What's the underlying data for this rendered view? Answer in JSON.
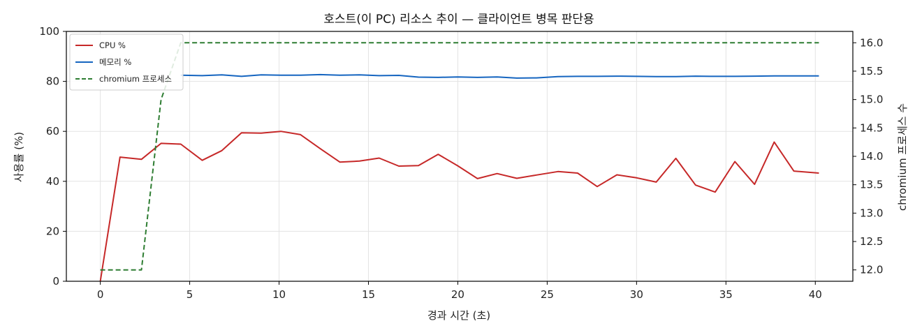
{
  "chart_data": {
    "type": "line",
    "title": "호스트(이 PC) 리소스 추이 — 클라이언트 병목 판단용",
    "xlabel": "경과 시간 (초)",
    "ylabel": "사용률 (%)",
    "y2label": "chromium 프로세스 수",
    "xlim": [
      -1.9,
      42.1
    ],
    "ylim": [
      0,
      100
    ],
    "y2lim": [
      11.8,
      16.2
    ],
    "xticks": [
      0,
      5,
      10,
      15,
      20,
      25,
      30,
      35,
      40
    ],
    "yticks": [
      0,
      20,
      40,
      60,
      80,
      100
    ],
    "y2ticks": [
      "12.0",
      "12.5",
      "13.0",
      "13.5",
      "14.0",
      "14.5",
      "15.0",
      "15.5",
      "16.0"
    ],
    "grid": true,
    "legend_position": "top-left",
    "series": [
      {
        "name": "CPU %",
        "color": "#c62828",
        "style": "solid",
        "axis": "left",
        "x": [
          0,
          1.1,
          2.3,
          3.4,
          4.5,
          5.7,
          6.8,
          7.9,
          9.0,
          10.1,
          11.2,
          12.3,
          13.4,
          14.5,
          15.6,
          16.7,
          17.8,
          18.9,
          20.0,
          21.1,
          22.2,
          23.3,
          24.4,
          25.6,
          26.7,
          27.8,
          28.9,
          30.0,
          31.1,
          32.2,
          33.3,
          34.4,
          35.5,
          36.6,
          37.7,
          38.8,
          40.2
        ],
        "values": [
          0,
          49.7,
          48.8,
          55.2,
          54.9,
          48.4,
          52.3,
          59.4,
          59.3,
          60.0,
          58.7,
          53.1,
          47.7,
          48.1,
          49.3,
          46.1,
          46.3,
          50.8,
          46.2,
          41.1,
          43.1,
          41.2,
          42.5,
          43.9,
          43.3,
          37.9,
          42.6,
          41.4,
          39.7,
          49.2,
          38.5,
          35.7,
          47.9,
          38.8,
          55.7,
          44.1,
          43.3
        ]
      },
      {
        "name": "메모리 %",
        "color": "#1565c0",
        "style": "solid",
        "axis": "left",
        "x": [
          4.5,
          5.7,
          6.8,
          7.9,
          9.0,
          10.1,
          11.2,
          12.3,
          13.4,
          14.5,
          15.6,
          16.7,
          17.8,
          18.9,
          20.0,
          21.1,
          22.2,
          23.3,
          24.4,
          25.6,
          26.7,
          27.8,
          28.9,
          30.0,
          31.1,
          32.2,
          33.3,
          34.4,
          35.5,
          36.6,
          37.7,
          38.8,
          40.2
        ],
        "values": [
          82.5,
          82.3,
          82.6,
          82.0,
          82.6,
          82.5,
          82.5,
          82.7,
          82.5,
          82.6,
          82.3,
          82.4,
          81.7,
          81.6,
          81.8,
          81.6,
          81.8,
          81.3,
          81.4,
          81.9,
          82.0,
          82.0,
          82.1,
          82.0,
          81.9,
          81.9,
          82.1,
          82.0,
          82.0,
          82.1,
          82.2,
          82.2,
          82.2
        ]
      },
      {
        "name": "chromium 프로세스",
        "color": "#2e7d32",
        "style": "dashed",
        "axis": "right",
        "x": [
          0,
          1.1,
          2.3,
          3.4,
          4.5,
          5.7,
          40.2
        ],
        "values": [
          12,
          12,
          12,
          15,
          16,
          16,
          16
        ]
      }
    ]
  }
}
